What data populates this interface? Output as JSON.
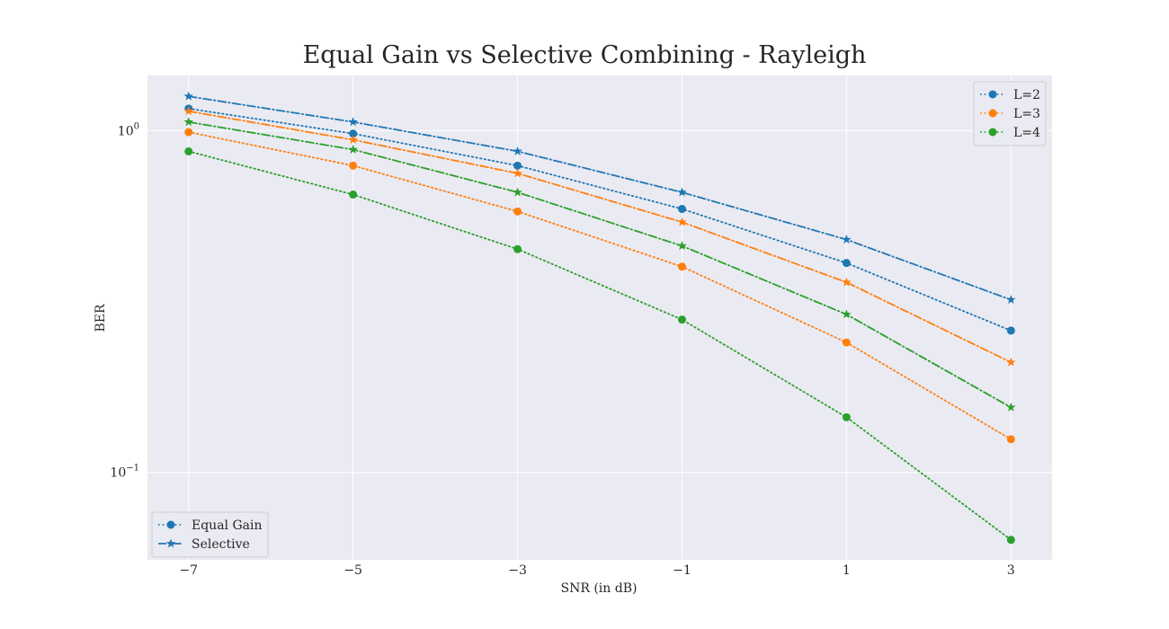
{
  "chart_data": {
    "type": "line",
    "title": "Equal Gain vs Selective Combining - Rayleigh",
    "xlabel": "SNR (in dB)",
    "ylabel": "BER",
    "x": [
      -7,
      -5,
      -3,
      -1,
      1,
      3
    ],
    "x_ticks": [
      -7,
      -5,
      -3,
      -1,
      1,
      3
    ],
    "x_tick_labels": [
      "−7",
      "−5",
      "−3",
      "−1",
      "1",
      "3"
    ],
    "xlim": [
      -7.5,
      3.5
    ],
    "y_scale": "log",
    "ylim": [
      0.0555,
      1.45
    ],
    "y_ticks": [
      {
        "value": 1,
        "base": "10",
        "exp": "0"
      },
      {
        "value": 0.1,
        "base": "10",
        "exp": "−1"
      }
    ],
    "grid": true,
    "series": [
      {
        "name": "L=2",
        "method": "Equal Gain",
        "color": "#1f77b4",
        "marker": "circle",
        "linestyle": "dotted",
        "values": [
          1.16,
          0.98,
          0.79,
          0.59,
          0.41,
          0.26
        ]
      },
      {
        "name": "L=3",
        "method": "Equal Gain",
        "color": "#ff7f0e",
        "marker": "circle",
        "linestyle": "dotted",
        "values": [
          0.99,
          0.79,
          0.58,
          0.4,
          0.24,
          0.125
        ]
      },
      {
        "name": "L=4",
        "method": "Equal Gain",
        "color": "#2ca02c",
        "marker": "circle",
        "linestyle": "dotted",
        "values": [
          0.87,
          0.65,
          0.45,
          0.28,
          0.145,
          0.0635
        ]
      },
      {
        "name": "L=2",
        "method": "Selective",
        "color": "#1f77b4",
        "marker": "star",
        "linestyle": "dashdot",
        "values": [
          1.26,
          1.06,
          0.87,
          0.66,
          0.48,
          0.32
        ]
      },
      {
        "name": "L=3",
        "method": "Selective",
        "color": "#ff7f0e",
        "marker": "star",
        "linestyle": "dashdot",
        "values": [
          1.14,
          0.94,
          0.75,
          0.54,
          0.36,
          0.21
        ]
      },
      {
        "name": "L=4",
        "method": "Selective",
        "color": "#2ca02c",
        "marker": "star",
        "linestyle": "dashdot",
        "values": [
          1.06,
          0.88,
          0.66,
          0.46,
          0.29,
          0.155
        ]
      }
    ],
    "legends": [
      {
        "placement": "upper-right",
        "entries": [
          {
            "label": "L=2",
            "color": "#1f77b4"
          },
          {
            "label": "L=3",
            "color": "#ff7f0e"
          },
          {
            "label": "L=4",
            "color": "#2ca02c"
          }
        ]
      },
      {
        "placement": "lower-left",
        "entries": [
          {
            "label": "Equal Gain",
            "color": "#1f77b4",
            "marker": "circle",
            "linestyle": "dotted"
          },
          {
            "label": "Selective",
            "color": "#1f77b4",
            "marker": "star",
            "linestyle": "dashdot"
          }
        ]
      }
    ],
    "plot_background": "#eaeaf2",
    "grid_color": "#ffffff"
  }
}
